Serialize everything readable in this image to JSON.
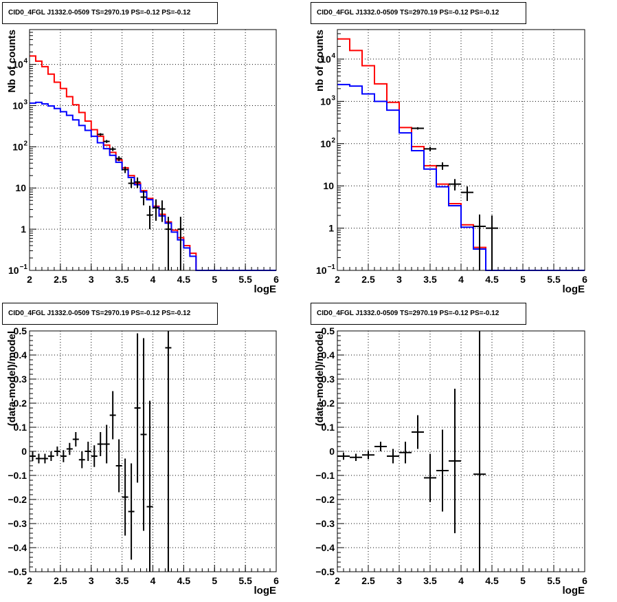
{
  "colors": {
    "data": "#000000",
    "model_total": "#ff0000",
    "model_blue": "#0000ff",
    "frame": "#000000",
    "grid": "#000000"
  },
  "chart_data": [
    {
      "id": "spectrum-fine",
      "type": "histogram",
      "title": "CID0_4FGL J1332.0-0509 TS=2970.19 PS=-0.12 PS=-0.12",
      "xlabel": "logE",
      "ylabel": "Nb of counts",
      "xlim": [
        2,
        6
      ],
      "ylim": [
        0.1,
        70000
      ],
      "yscale": "log",
      "grid": true,
      "x_ticks": [
        "2",
        "2.5",
        "3",
        "3.5",
        "4",
        "4.5",
        "5",
        "5.5",
        "6"
      ],
      "y_ticks": [
        {
          "v": 0.1,
          "b": "10",
          "e": "−1"
        },
        {
          "v": 1,
          "b": "1",
          "e": ""
        },
        {
          "v": 10,
          "b": "10",
          "e": ""
        },
        {
          "v": 100,
          "b": "10",
          "e": "2"
        },
        {
          "v": 1000,
          "b": "10",
          "e": "3"
        },
        {
          "v": 10000,
          "b": "10",
          "e": "4"
        }
      ],
      "bin_width": 0.1,
      "series": [
        {
          "color": "red",
          "values": [
            16000,
            12000,
            8800,
            5800,
            3700,
            2600,
            1650,
            1050,
            680,
            420,
            260,
            180,
            110,
            73,
            48,
            31,
            20,
            13,
            8.6,
            5.6,
            3.6,
            2.3,
            1.5,
            0.95,
            0.62,
            0.4,
            0.26,
            0.1,
            0.1,
            0.1,
            0.1,
            0.1,
            0.1,
            0.1,
            0.1,
            0.1,
            0.1,
            0.1,
            0.1,
            0.1
          ]
        },
        {
          "color": "blue",
          "values": [
            1150,
            1200,
            1100,
            980,
            850,
            710,
            580,
            450,
            330,
            250,
            180,
            125,
            90,
            62,
            42,
            28,
            18,
            12,
            8,
            5.2,
            3.4,
            2.1,
            1.4,
            0.85,
            0.55,
            0.35,
            0.22,
            0.1,
            0.1,
            0.1,
            0.1,
            0.1,
            0.1,
            0.1,
            0.1,
            0.1,
            0.1,
            0.1,
            0.1,
            0.1
          ]
        }
      ],
      "points": [
        {
          "x": 3.15,
          "y": 200,
          "lo": 186,
          "hi": 214
        },
        {
          "x": 3.25,
          "y": 135,
          "lo": 124,
          "hi": 146
        },
        {
          "x": 3.35,
          "y": 88,
          "lo": 79,
          "hi": 97
        },
        {
          "x": 3.45,
          "y": 52,
          "lo": 45,
          "hi": 59
        },
        {
          "x": 3.55,
          "y": 28,
          "lo": 23,
          "hi": 33
        },
        {
          "x": 3.65,
          "y": 13,
          "lo": 10,
          "hi": 17
        },
        {
          "x": 3.75,
          "y": 14,
          "lo": 10,
          "hi": 18
        },
        {
          "x": 3.85,
          "y": 6,
          "lo": 3.8,
          "hi": 8.6
        },
        {
          "x": 3.95,
          "y": 2.2,
          "lo": 1.0,
          "hi": 3.7
        },
        {
          "x": 4.05,
          "y": 3.3,
          "lo": 1.6,
          "hi": 5.3
        },
        {
          "x": 4.15,
          "y": 3.1,
          "lo": 1.5,
          "hi": 5.0
        },
        {
          "x": 4.25,
          "y": 1.0,
          "lo": 0.1,
          "hi": 2.0
        },
        {
          "x": 4.45,
          "y": 1.0,
          "lo": 0.1,
          "hi": 2.0
        }
      ]
    },
    {
      "id": "spectrum-coarse",
      "type": "histogram",
      "title": "CID0_4FGL J1332.0-0509 TS=2970.19 PS=-0.12 PS=-0.12",
      "xlabel": "logE",
      "ylabel": "nb of counts",
      "xlim": [
        2,
        6
      ],
      "ylim": [
        0.1,
        50000
      ],
      "yscale": "log",
      "grid": true,
      "x_ticks": [
        "2",
        "2.5",
        "3",
        "3.5",
        "4",
        "4.5",
        "5",
        "5.5",
        "6"
      ],
      "y_ticks": [
        {
          "v": 0.1,
          "b": "10",
          "e": "−1"
        },
        {
          "v": 1,
          "b": "1",
          "e": ""
        },
        {
          "v": 10,
          "b": "10",
          "e": ""
        },
        {
          "v": 100,
          "b": "10",
          "e": "2"
        },
        {
          "v": 1000,
          "b": "10",
          "e": "3"
        },
        {
          "v": 10000,
          "b": "10",
          "e": "4"
        }
      ],
      "bin_width": 0.2,
      "series": [
        {
          "color": "red",
          "values": [
            30000,
            16000,
            7000,
            2600,
            950,
            240,
            85,
            30,
            11,
            3.8,
            1.2,
            0.35,
            0.1,
            0.1,
            0.1,
            0.1,
            0.1,
            0.1,
            0.1,
            0.1
          ]
        },
        {
          "color": "blue",
          "values": [
            2500,
            2300,
            1500,
            1000,
            620,
            180,
            68,
            25,
            9.5,
            3.4,
            1.05,
            0.32,
            0.1,
            0.1,
            0.1,
            0.1,
            0.1,
            0.1,
            0.1,
            0.1
          ]
        }
      ],
      "points": [
        {
          "x": 3.3,
          "y": 230,
          "lo": 215,
          "hi": 245
        },
        {
          "x": 3.5,
          "y": 75,
          "lo": 66,
          "hi": 84
        },
        {
          "x": 3.7,
          "y": 30,
          "lo": 24,
          "hi": 36
        },
        {
          "x": 3.9,
          "y": 11,
          "lo": 7.8,
          "hi": 14.5
        },
        {
          "x": 4.1,
          "y": 7,
          "lo": 4.4,
          "hi": 9.7
        },
        {
          "x": 4.3,
          "y": 1.1,
          "lo": 0.1,
          "hi": 2.1
        },
        {
          "x": 4.5,
          "y": 1.0,
          "lo": 0.1,
          "hi": 2.0
        }
      ]
    },
    {
      "id": "residual-fine",
      "type": "scatter",
      "title": "CID0_4FGL J1332.0-0509 TS=2970.19 PS=-0.12 PS=-0.12",
      "xlabel": "logE",
      "ylabel": "(data-model)/model",
      "xlim": [
        2,
        6
      ],
      "ylim": [
        -0.5,
        0.5
      ],
      "grid": true,
      "x_ticks": [
        "2",
        "2.5",
        "3",
        "3.5",
        "4",
        "4.5",
        "5",
        "5.5",
        "6"
      ],
      "y_ticks": [
        "−0.5",
        "−0.4",
        "−0.3",
        "−0.2",
        "−0.1",
        "0",
        "0.1",
        "0.2",
        "0.3",
        "0.4",
        "0.5"
      ],
      "xerr": 0.05,
      "points": [
        {
          "x": 2.05,
          "y": -0.02,
          "e": 0.02
        },
        {
          "x": 2.15,
          "y": -0.03,
          "e": 0.02
        },
        {
          "x": 2.25,
          "y": -0.03,
          "e": 0.02
        },
        {
          "x": 2.35,
          "y": -0.02,
          "e": 0.02
        },
        {
          "x": 2.45,
          "y": 0.0,
          "e": 0.02
        },
        {
          "x": 2.55,
          "y": -0.02,
          "e": 0.025
        },
        {
          "x": 2.65,
          "y": 0.01,
          "e": 0.025
        },
        {
          "x": 2.75,
          "y": 0.05,
          "e": 0.03
        },
        {
          "x": 2.85,
          "y": -0.035,
          "e": 0.035
        },
        {
          "x": 2.95,
          "y": 0.0,
          "e": 0.04
        },
        {
          "x": 3.05,
          "y": -0.02,
          "e": 0.045
        },
        {
          "x": 3.15,
          "y": 0.03,
          "e": 0.05
        },
        {
          "x": 3.25,
          "y": 0.03,
          "e": 0.08
        },
        {
          "x": 3.35,
          "y": 0.15,
          "e": 0.1
        },
        {
          "x": 3.45,
          "y": -0.06,
          "e": 0.11
        },
        {
          "x": 3.55,
          "y": -0.19,
          "e": 0.16
        },
        {
          "x": 3.65,
          "y": -0.25,
          "e": 0.2
        },
        {
          "x": 3.75,
          "y": 0.18,
          "e": 0.31
        },
        {
          "x": 3.85,
          "y": 0.07,
          "e": 0.4
        },
        {
          "x": 3.95,
          "y": -0.23,
          "e": 0.44
        },
        {
          "x": 4.25,
          "y": 0.43,
          "e": 1.0
        }
      ]
    },
    {
      "id": "residual-coarse",
      "type": "scatter",
      "title": "CID0_4FGL J1332.0-0509 TS=2970.19 PS=-0.12 PS=-0.12",
      "xlabel": "logE",
      "ylabel": "(data-model)/model",
      "xlim": [
        2,
        6
      ],
      "ylim": [
        -0.5,
        0.5
      ],
      "grid": true,
      "x_ticks": [
        "2",
        "2.5",
        "3",
        "3.5",
        "4",
        "4.5",
        "5",
        "5.5",
        "6"
      ],
      "y_ticks": [
        "−0.5",
        "−0.4",
        "−0.3",
        "−0.2",
        "−0.1",
        "0",
        "0.1",
        "0.2",
        "0.3",
        "0.4",
        "0.5"
      ],
      "xerr": 0.1,
      "points": [
        {
          "x": 2.1,
          "y": -0.02,
          "e": 0.015
        },
        {
          "x": 2.3,
          "y": -0.025,
          "e": 0.015
        },
        {
          "x": 2.5,
          "y": -0.015,
          "e": 0.018
        },
        {
          "x": 2.7,
          "y": 0.02,
          "e": 0.02
        },
        {
          "x": 2.9,
          "y": -0.02,
          "e": 0.03
        },
        {
          "x": 3.1,
          "y": -0.005,
          "e": 0.045
        },
        {
          "x": 3.3,
          "y": 0.08,
          "e": 0.07
        },
        {
          "x": 3.5,
          "y": -0.11,
          "e": 0.1
        },
        {
          "x": 3.7,
          "y": -0.08,
          "e": 0.17
        },
        {
          "x": 3.9,
          "y": -0.04,
          "e": 0.3
        },
        {
          "x": 4.3,
          "y": -0.095,
          "e": 1.0
        }
      ]
    }
  ]
}
